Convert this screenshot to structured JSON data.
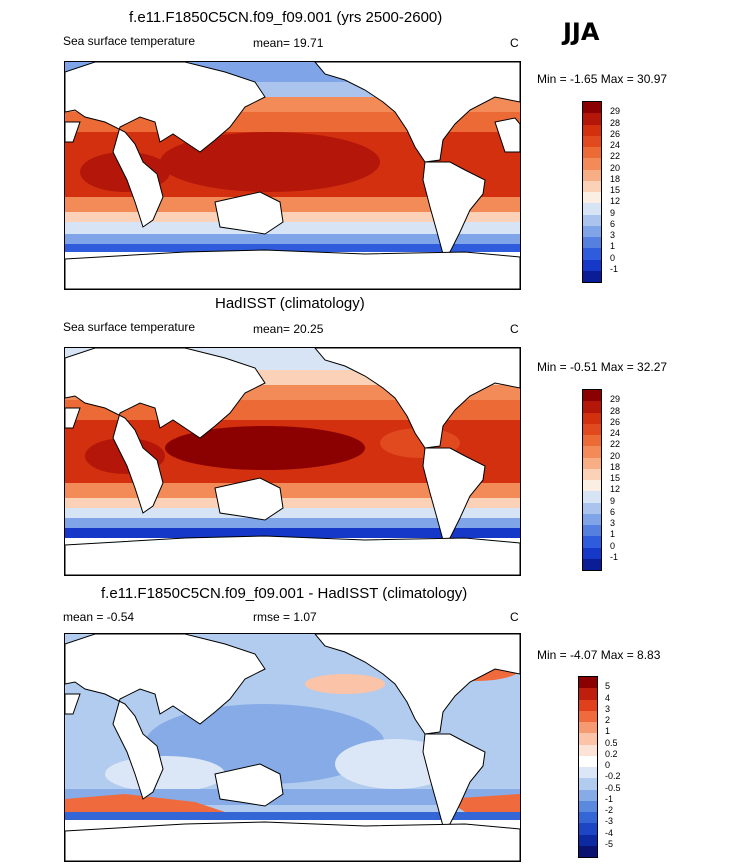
{
  "season": "JJA",
  "panels": [
    {
      "title": "f.e11.F1850C5CN.f09_f09.001 (yrs 2500-2600)",
      "left_label": "Sea surface temperature",
      "mean_label": "mean=  19.71",
      "units": "C",
      "minmax": "Min =  -1.65 Max =  30.97",
      "scale": "abs",
      "levels": [
        "29",
        "28",
        "26",
        "24",
        "22",
        "20",
        "18",
        "15",
        "12",
        "9",
        "6",
        "3",
        "1",
        "0",
        "-1"
      ]
    },
    {
      "title": "HadISST (climatology)",
      "left_label": "Sea surface temperature",
      "mean_label": "mean=  20.25",
      "units": "C",
      "minmax": "Min =  -0.51 Max =  32.27",
      "scale": "abs",
      "levels": [
        "29",
        "28",
        "26",
        "24",
        "22",
        "20",
        "18",
        "15",
        "12",
        "9",
        "6",
        "3",
        "1",
        "0",
        "-1"
      ]
    },
    {
      "title": "f.e11.F1850C5CN.f09_f09.001 - HadISST (climatology)",
      "left_label": "mean =  -0.54",
      "mean_label": "rmse =   1.07",
      "units": "C",
      "minmax": "Min =  -4.07 Max =   8.83",
      "scale": "diff",
      "levels": [
        "5",
        "4",
        "3",
        "2",
        "1",
        "0.5",
        "0.2",
        "0",
        "-0.2",
        "-0.5",
        "-1",
        "-2",
        "-3",
        "-4",
        "-5"
      ]
    }
  ],
  "colors": {
    "abs": [
      "#8b0000",
      "#b4170a",
      "#d2300f",
      "#e14a1e",
      "#eb6a35",
      "#f28b58",
      "#f7ae85",
      "#fbd1b7",
      "#fbeee2",
      "#d6e4f5",
      "#aac4ee",
      "#7fa4e8",
      "#5580e0",
      "#2f5cdc",
      "#1538c8",
      "#0a1c96"
    ],
    "diff": [
      "#8b0000",
      "#c01e0c",
      "#e0401c",
      "#ef6a3c",
      "#f69a72",
      "#fbc3a7",
      "#fde3d6",
      "#ffffff",
      "#dbe7f7",
      "#b2ccef",
      "#86abe6",
      "#5a89dd",
      "#3566d6",
      "#1d45c4",
      "#0d2aa0",
      "#0a1370"
    ],
    "land": "#ffffff",
    "coast": "#000000"
  }
}
